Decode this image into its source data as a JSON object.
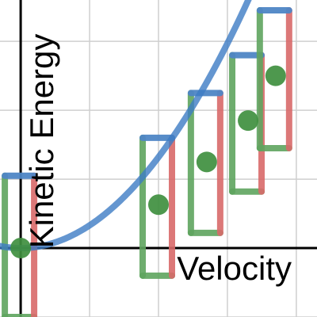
{
  "chart_data": {
    "type": "scatter",
    "xlabel": "Velocity",
    "ylabel": "Kinetic Energy",
    "xlim": [
      -0.3,
      4.3
    ],
    "ylim": [
      -1.0,
      3.6
    ],
    "grid": true,
    "gridlines_x": [
      0,
      1,
      2,
      3,
      4
    ],
    "gridlines_y": [
      -1,
      0,
      1,
      2,
      3
    ],
    "curve": {
      "type": "quadratic",
      "a": 0.33,
      "color": "#3d7cc4"
    },
    "colors": {
      "point": "#3f8f3f",
      "bar_green": "#5fa55f",
      "bar_red": "#d96a6a",
      "cap_blue": "#4f86c6",
      "axis": "#000000",
      "grid": "#cfcfcf"
    },
    "points": [
      {
        "x": 0.0,
        "y": 0.0,
        "green_low": -1.0,
        "green_high": 1.05,
        "red_low": -1.0,
        "red_high": 1.05
      },
      {
        "x": 2.0,
        "y": 0.63,
        "green_low": -0.4,
        "green_high": 1.6,
        "red_low": -0.4,
        "red_high": 1.6
      },
      {
        "x": 2.7,
        "y": 1.25,
        "green_low": 0.22,
        "green_high": 2.25,
        "red_low": 0.22,
        "red_high": 2.25
      },
      {
        "x": 3.3,
        "y": 1.85,
        "green_low": 0.82,
        "green_high": 2.8,
        "red_low": 0.82,
        "red_high": 2.8
      },
      {
        "x": 3.7,
        "y": 2.5,
        "green_low": 1.45,
        "green_high": 3.45,
        "red_low": 1.45,
        "red_high": 3.45
      }
    ]
  }
}
